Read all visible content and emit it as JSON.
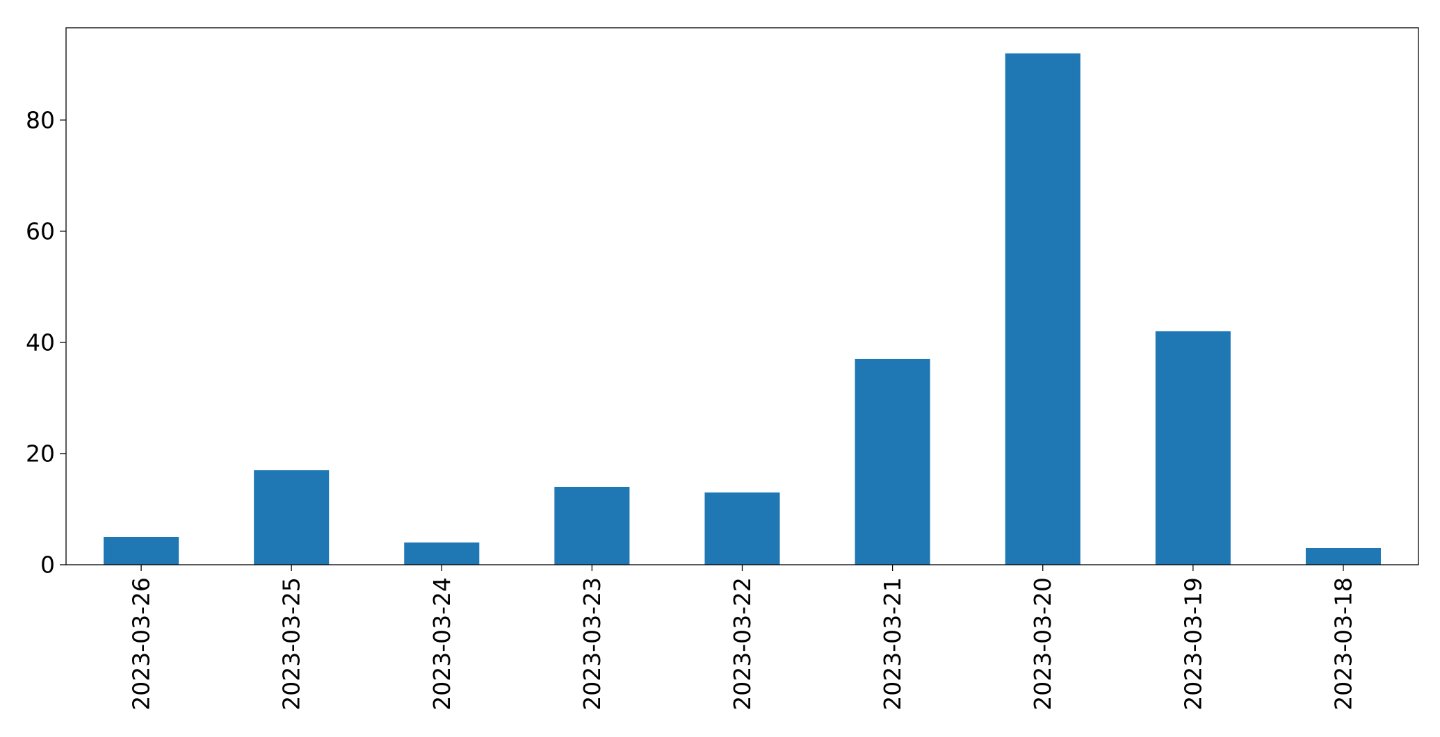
{
  "chart_data": {
    "type": "bar",
    "title": "",
    "xlabel": "",
    "ylabel": "",
    "categories": [
      "2023-03-26",
      "2023-03-25",
      "2023-03-24",
      "2023-03-23",
      "2023-03-22",
      "2023-03-21",
      "2023-03-20",
      "2023-03-19",
      "2023-03-18"
    ],
    "values": [
      5,
      17,
      4,
      14,
      13,
      37,
      92,
      42,
      3
    ],
    "ylim": [
      0,
      96.6
    ],
    "yticks": [
      0,
      20,
      40,
      60,
      80
    ],
    "ytick_labels": [
      "0",
      "20",
      "40",
      "60",
      "80"
    ],
    "grid": false,
    "legend": "none",
    "bar_color": "#1f77b4"
  }
}
